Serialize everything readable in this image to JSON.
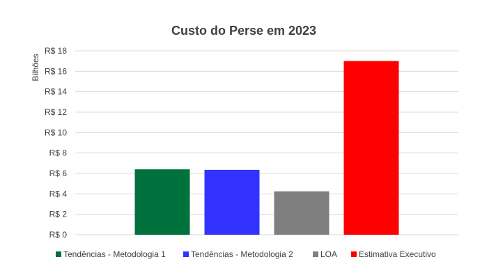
{
  "chart_data": {
    "type": "bar",
    "title": "Custo do Perse em 2023",
    "ylabel": "Bilhões",
    "xlabel": "",
    "ylim": [
      0,
      18
    ],
    "ytick_values": [
      0,
      2,
      4,
      6,
      8,
      10,
      12,
      14,
      16,
      18
    ],
    "ytick_labels": [
      "R$ 0",
      "R$ 2",
      "R$ 4",
      "R$ 6",
      "R$ 8",
      "R$ 10",
      "R$ 12",
      "R$ 14",
      "R$ 16",
      "R$ 18"
    ],
    "grid": true,
    "legend_position": "bottom",
    "series": [
      {
        "name": "Tendências - Metodologia 1",
        "value": 6.4,
        "color": "#00703c"
      },
      {
        "name": "Tendências - Metodologia 2",
        "value": 6.35,
        "color": "#3333ff"
      },
      {
        "name": "LOA",
        "value": 4.25,
        "color": "#7f7f7f"
      },
      {
        "name": "Estimativa Executivo",
        "value": 17.0,
        "color": "#ff0000"
      }
    ]
  }
}
